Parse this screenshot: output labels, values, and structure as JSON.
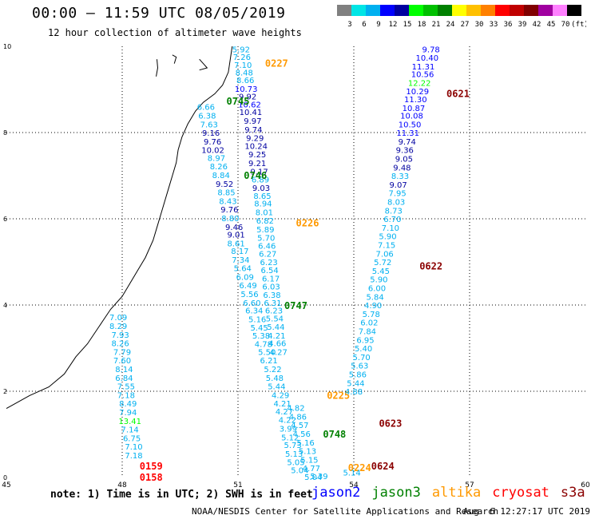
{
  "header": {
    "title": "00:00 – 11:59 UTC 08/05/2019",
    "subtitle": "12 hour collection of altimeter wave heights"
  },
  "colorbar": {
    "labels": [
      "3",
      "6",
      "9",
      "12",
      "15",
      "18",
      "21",
      "24",
      "27",
      "30",
      "33",
      "36",
      "39",
      "42",
      "45",
      "70",
      "(ft)"
    ],
    "colors": [
      "#808080",
      "#00e5e5",
      "#00b0f0",
      "#0000ff",
      "#0000a0",
      "#00ff00",
      "#00c000",
      "#008000",
      "#ffff00",
      "#ffc000",
      "#ff8000",
      "#ff0000",
      "#c00000",
      "#800000",
      "#a000a0",
      "#ff80ff",
      "#000000"
    ]
  },
  "legend": {
    "note": "note: 1) Time is in UTC; 2) SWH is in feet",
    "sats": [
      {
        "name": "jason2",
        "color": "#0000ff"
      },
      {
        "name": "jason3",
        "color": "#008000"
      },
      {
        "name": "altika",
        "color": "#ff9900"
      },
      {
        "name": "cryosat",
        "color": "#ff0000"
      },
      {
        "name": "s3a",
        "color": "#8b0000"
      }
    ]
  },
  "footer": {
    "credit": "NOAA/NESDIS Center for Satellite Applications and Research",
    "timestamp": "Aug  6 12:27:17 UTC 2019"
  },
  "chart_data": {
    "type": "scatter",
    "xlim": [
      45,
      60
    ],
    "ylim": [
      0,
      10
    ],
    "x_ticks": [
      "45",
      "48",
      "51",
      "54",
      "57",
      "60"
    ],
    "y_ticks": [
      "0",
      "2",
      "4",
      "6",
      "8",
      "10"
    ],
    "grid": true,
    "tracks": [
      {
        "label": "0227",
        "label_color": "#ff9900",
        "label_pos": [
          52.0,
          9.6
        ],
        "points": [
          [
            51.08,
            9.92,
            "5.92",
            "#00b0f0"
          ],
          [
            51.1,
            9.74,
            "7.26",
            "#00b0f0"
          ],
          [
            51.13,
            9.56,
            "7.10",
            "#00b0f0"
          ],
          [
            51.16,
            9.38,
            "8.48",
            "#00b0f0"
          ],
          [
            51.19,
            9.2,
            "8.66",
            "#00b0f0"
          ],
          [
            51.21,
            9.0,
            "10.73",
            "#0000ff"
          ],
          [
            51.25,
            8.82,
            "9.92",
            "#0000a0"
          ],
          [
            51.3,
            8.64,
            "10.62",
            "#0000ff"
          ],
          [
            51.33,
            8.46,
            "10.41",
            "#0000a0"
          ],
          [
            51.38,
            8.26,
            "9.97",
            "#0000a0"
          ],
          [
            51.4,
            8.06,
            "9.74",
            "#0000a0"
          ],
          [
            51.44,
            7.86,
            "9.29",
            "#0000a0"
          ],
          [
            51.47,
            7.68,
            "10.24",
            "#0000a0"
          ],
          [
            51.5,
            7.48,
            "9.25",
            "#0000a0"
          ],
          [
            51.5,
            7.28,
            "9.21",
            "#0000a0"
          ],
          [
            51.55,
            7.08,
            "9.17",
            "#0000a0"
          ],
          [
            51.58,
            6.9,
            "6.89",
            "#00b0f0"
          ],
          [
            51.6,
            6.7,
            "9.03",
            "#0000a0"
          ],
          [
            51.63,
            6.52,
            "8.65",
            "#00b0f0"
          ],
          [
            51.65,
            6.34,
            "8.94",
            "#00b0f0"
          ],
          [
            51.68,
            6.14,
            "8.01",
            "#00b0f0"
          ],
          [
            51.7,
            5.94,
            "6.82",
            "#00b0f0"
          ],
          [
            51.71,
            5.74,
            "5.89",
            "#00b0f0"
          ],
          [
            51.73,
            5.55,
            "5.70",
            "#00b0f0"
          ],
          [
            51.75,
            5.36,
            "6.46",
            "#00b0f0"
          ],
          [
            51.77,
            5.18,
            "6.27",
            "#00b0f0"
          ],
          [
            51.8,
            4.98,
            "6.23",
            "#00b0f0"
          ],
          [
            51.82,
            4.8,
            "6.54",
            "#00b0f0"
          ],
          [
            51.85,
            4.6,
            "6.17",
            "#00b0f0"
          ],
          [
            51.86,
            4.42,
            "6.03",
            "#00b0f0"
          ],
          [
            51.88,
            4.22,
            "6.38",
            "#00b0f0"
          ],
          [
            51.9,
            4.04,
            "6.31",
            "#00b0f0"
          ],
          [
            51.93,
            3.86,
            "6.23",
            "#00b0f0"
          ],
          [
            51.95,
            3.68,
            "5.54",
            "#00b0f0"
          ],
          [
            51.98,
            3.48,
            "5.44",
            "#00b0f0"
          ],
          [
            52.0,
            3.28,
            "4.21",
            "#00b0f0"
          ],
          [
            52.02,
            3.1,
            "4.66",
            "#00b0f0"
          ],
          [
            52.05,
            2.9,
            "4.27",
            "#00b0f0"
          ]
        ]
      },
      {
        "label": "0745",
        "label_color": "#008000",
        "label_pos": [
          51.0,
          8.72
        ],
        "points": [
          [
            50.17,
            8.58,
            "6.66",
            "#00b0f0"
          ],
          [
            50.2,
            8.38,
            "6.38",
            "#00b0f0"
          ],
          [
            50.25,
            8.18,
            "7.63",
            "#00b0f0"
          ],
          [
            50.3,
            7.98,
            "9.16",
            "#0000a0"
          ],
          [
            50.34,
            7.78,
            "9.76",
            "#0000a0"
          ],
          [
            50.35,
            7.58,
            "10.02",
            "#0000a0"
          ],
          [
            50.44,
            7.4,
            "8.97",
            "#00b0f0"
          ],
          [
            50.5,
            7.2,
            "8.26",
            "#00b0f0"
          ],
          [
            50.56,
            7.0,
            "8.84",
            "#00b0f0"
          ],
          [
            50.65,
            6.8,
            "9.52",
            "#0000a0"
          ],
          [
            50.7,
            6.6,
            "8.85",
            "#00b0f0"
          ],
          [
            50.74,
            6.4,
            "8.43",
            "#00b0f0"
          ],
          [
            50.78,
            6.2,
            "9.76",
            "#0000a0"
          ],
          [
            50.8,
            6.0,
            "8.80",
            "#00b0f0"
          ],
          [
            50.9,
            5.8,
            "9.46",
            "#0000a0"
          ],
          [
            50.95,
            5.62,
            "9.01",
            "#0000a0"
          ],
          [
            50.95,
            5.42,
            "8.61",
            "#00b0f0"
          ],
          [
            51.05,
            5.24,
            "8.17",
            "#00b0f0"
          ],
          [
            51.07,
            5.04,
            "7.34",
            "#00b0f0"
          ],
          [
            51.12,
            4.84,
            "5.64",
            "#00b0f0"
          ],
          [
            51.18,
            4.64,
            "6.09",
            "#00b0f0"
          ],
          [
            51.26,
            4.44,
            "6.49",
            "#00b0f0"
          ],
          [
            51.3,
            4.24,
            "5.56",
            "#00b0f0"
          ],
          [
            51.36,
            4.04,
            "6.60",
            "#00b0f0"
          ],
          [
            51.42,
            3.86,
            "6.34",
            "#00b0f0"
          ],
          [
            51.5,
            3.66,
            "5.16",
            "#00b0f0"
          ],
          [
            51.55,
            3.46,
            "5.45",
            "#00b0f0"
          ],
          [
            51.6,
            3.28,
            "5.38",
            "#00b0f0"
          ],
          [
            51.66,
            3.08,
            "4.78",
            "#00b0f0"
          ],
          [
            51.75,
            2.9,
            "5.50",
            "#00b0f0"
          ],
          [
            51.8,
            2.7,
            "6.21",
            "#00b0f0"
          ]
        ]
      },
      {
        "label": "0746",
        "label_color": "#008000",
        "label_pos": [
          51.45,
          7.0
        ],
        "points": []
      },
      {
        "label": "0226",
        "label_color": "#ff9900",
        "label_pos": [
          52.8,
          5.9
        ],
        "points": []
      },
      {
        "label": "0747",
        "label_color": "#008000",
        "label_pos": [
          52.5,
          3.98
        ],
        "points": []
      },
      {
        "label": "0225",
        "label_color": "#ff9900",
        "label_pos": [
          53.6,
          1.9
        ],
        "points": [
          [
            51.9,
            2.5,
            "5.22",
            "#00b0f0"
          ],
          [
            51.95,
            2.3,
            "5.48",
            "#00b0f0"
          ],
          [
            52.0,
            2.1,
            "5.44",
            "#00b0f0"
          ],
          [
            52.1,
            1.9,
            "4.29",
            "#00b0f0"
          ],
          [
            52.15,
            1.7,
            "4.21",
            "#00b0f0"
          ],
          [
            52.2,
            1.52,
            "4.27",
            "#00b0f0"
          ],
          [
            52.28,
            1.32,
            "4.22",
            "#00b0f0"
          ],
          [
            52.3,
            1.12,
            "3.99",
            "#00b0f0"
          ],
          [
            52.35,
            0.92,
            "5.12",
            "#00b0f0"
          ],
          [
            52.42,
            0.74,
            "5.73",
            "#00b0f0"
          ],
          [
            52.45,
            0.54,
            "5.13",
            "#00b0f0"
          ],
          [
            52.5,
            0.34,
            "5.05",
            "#00b0f0"
          ],
          [
            52.6,
            0.16,
            "5.04",
            "#00b0f0"
          ]
        ]
      },
      {
        "label": "0748",
        "label_color": "#008000",
        "label_pos": [
          53.5,
          1.0
        ],
        "points": [
          [
            52.5,
            1.6,
            "4.82",
            "#00b0f0"
          ],
          [
            52.55,
            1.4,
            "4.86",
            "#00b0f0"
          ],
          [
            52.6,
            1.2,
            "4.57",
            "#00b0f0"
          ],
          [
            52.65,
            1.0,
            "4.56",
            "#00b0f0"
          ],
          [
            52.75,
            0.8,
            "5.16",
            "#00b0f0"
          ],
          [
            52.8,
            0.6,
            "5.13",
            "#00b0f0"
          ],
          [
            52.85,
            0.4,
            "5.15",
            "#00b0f0"
          ],
          [
            52.9,
            0.2,
            "4.77",
            "#00b0f0"
          ]
        ]
      },
      {
        "label": "0224",
        "label_color": "#ff9900",
        "label_pos": [
          54.15,
          0.22
        ],
        "points": [
          [
            52.95,
            0.0,
            "5.04",
            "#00b0f0"
          ],
          [
            53.1,
            0.02,
            "5.39",
            "#00b0f0"
          ]
        ]
      },
      {
        "label": "0621",
        "label_color": "#8b0000",
        "label_pos": [
          56.7,
          8.9
        ],
        "points": [
          [
            56.0,
            9.92,
            "9.78",
            "#0000ff"
          ],
          [
            55.9,
            9.72,
            "10.40",
            "#0000ff"
          ],
          [
            55.8,
            9.52,
            "11.31",
            "#0000ff"
          ],
          [
            55.78,
            9.34,
            "10.56",
            "#0000ff"
          ],
          [
            55.7,
            9.14,
            "12.22",
            "#00ff00"
          ],
          [
            55.65,
            8.94,
            "10.29",
            "#0000ff"
          ],
          [
            55.6,
            8.76,
            "11.30",
            "#0000ff"
          ],
          [
            55.55,
            8.56,
            "10.87",
            "#0000ff"
          ],
          [
            55.5,
            8.38,
            "10.08",
            "#0000ff"
          ],
          [
            55.45,
            8.18,
            "10.50",
            "#0000ff"
          ],
          [
            55.4,
            7.98,
            "11.31",
            "#0000ff"
          ],
          [
            55.38,
            7.78,
            "9.74",
            "#0000a0"
          ],
          [
            55.32,
            7.58,
            "9.36",
            "#0000a0"
          ],
          [
            55.3,
            7.38,
            "9.05",
            "#0000a0"
          ],
          [
            55.25,
            7.18,
            "9.48",
            "#0000a0"
          ],
          [
            55.2,
            6.98,
            "8.33",
            "#00b0f0"
          ],
          [
            55.15,
            6.78,
            "9.07",
            "#0000a0"
          ]
        ]
      },
      {
        "label": "0622",
        "label_color": "#8b0000",
        "label_pos": [
          56.0,
          4.9
        ],
        "points": [
          [
            55.13,
            6.58,
            "7.95",
            "#00b0f0"
          ],
          [
            55.1,
            6.38,
            "8.03",
            "#00b0f0"
          ],
          [
            55.03,
            6.18,
            "8.73",
            "#00b0f0"
          ],
          [
            55.0,
            5.98,
            "6.70",
            "#00b0f0"
          ],
          [
            54.95,
            5.78,
            "7.10",
            "#00b0f0"
          ],
          [
            54.88,
            5.58,
            "5.90",
            "#00b0f0"
          ],
          [
            54.85,
            5.38,
            "7.15",
            "#00b0f0"
          ],
          [
            54.8,
            5.18,
            "7.06",
            "#00b0f0"
          ],
          [
            54.75,
            4.98,
            "5.72",
            "#00b0f0"
          ],
          [
            54.7,
            4.78,
            "5.45",
            "#00b0f0"
          ],
          [
            54.65,
            4.58,
            "5.90",
            "#00b0f0"
          ],
          [
            54.6,
            4.38,
            "6.00",
            "#00b0f0"
          ],
          [
            54.55,
            4.18,
            "5.84",
            "#00b0f0"
          ],
          [
            54.5,
            3.98,
            "4.90",
            "#00b0f0"
          ]
        ]
      },
      {
        "label": "0623",
        "label_color": "#8b0000",
        "label_pos": [
          54.95,
          1.25
        ],
        "points": [
          [
            54.45,
            3.78,
            "5.78",
            "#00b0f0"
          ],
          [
            54.4,
            3.58,
            "6.02",
            "#00b0f0"
          ],
          [
            54.35,
            3.38,
            "7.84",
            "#00b0f0"
          ],
          [
            54.3,
            3.18,
            "6.95",
            "#00b0f0"
          ],
          [
            54.25,
            2.98,
            "5.40",
            "#00b0f0"
          ],
          [
            54.2,
            2.78,
            "5.70",
            "#00b0f0"
          ],
          [
            54.15,
            2.58,
            "5.63",
            "#00b0f0"
          ],
          [
            54.1,
            2.38,
            "5.86",
            "#00b0f0"
          ],
          [
            54.05,
            2.18,
            "5.44",
            "#00b0f0"
          ],
          [
            54.0,
            1.98,
            "4.88",
            "#00b0f0"
          ]
        ]
      },
      {
        "label": "0624",
        "label_color": "#8b0000",
        "label_pos": [
          54.75,
          0.26
        ],
        "points": [
          [
            53.95,
            0.1,
            "5.14",
            "#00b0f0"
          ]
        ]
      },
      {
        "label": "0159",
        "label_color": "#ff0000",
        "label_pos": [
          48.75,
          0.26
        ],
        "points": [
          [
            47.9,
            3.7,
            "7.09",
            "#00b0f0"
          ],
          [
            47.9,
            3.5,
            "8.29",
            "#00b0f0"
          ],
          [
            47.95,
            3.3,
            "7.93",
            "#00b0f0"
          ],
          [
            47.95,
            3.1,
            "8.26",
            "#00b0f0"
          ],
          [
            48.0,
            2.9,
            "7.79",
            "#00b0f0"
          ],
          [
            48.0,
            2.7,
            "7.60",
            "#00b0f0"
          ],
          [
            48.05,
            2.5,
            "8.14",
            "#00b0f0"
          ],
          [
            48.05,
            2.3,
            "6.84",
            "#00b0f0"
          ],
          [
            48.1,
            2.1,
            "7.55",
            "#00b0f0"
          ],
          [
            48.1,
            1.9,
            "7.18",
            "#00b0f0"
          ],
          [
            48.15,
            1.7,
            "8.49",
            "#00b0f0"
          ],
          [
            48.15,
            1.5,
            "7.94",
            "#00b0f0"
          ],
          [
            48.2,
            1.3,
            "13.41",
            "#00ff00"
          ],
          [
            48.2,
            1.1,
            "7.14",
            "#00b0f0"
          ],
          [
            48.25,
            0.9,
            "6.75",
            "#00b0f0"
          ],
          [
            48.3,
            0.7,
            "7.10",
            "#00b0f0"
          ],
          [
            48.3,
            0.5,
            "7.18",
            "#00b0f0"
          ]
        ]
      },
      {
        "label": "0158",
        "label_color": "#ff0000",
        "label_pos": [
          48.75,
          0.0
        ],
        "points": []
      }
    ]
  }
}
